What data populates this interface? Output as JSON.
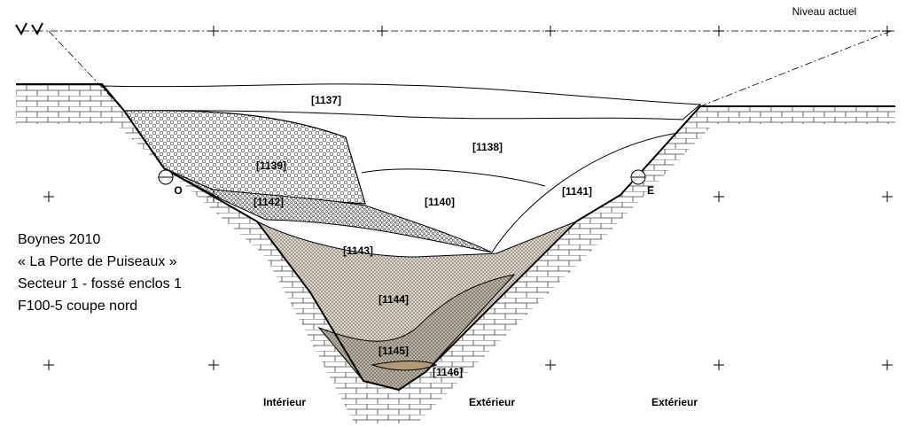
{
  "header": {
    "label": "Niveau actuel"
  },
  "layers": [
    {
      "label": "[1137]"
    },
    {
      "label": "[1138]"
    },
    {
      "label": "[1139]"
    },
    {
      "label": "[1140]"
    },
    {
      "label": "[1141]"
    },
    {
      "label": "[1142]"
    },
    {
      "label": "[1143]"
    },
    {
      "label": "[1144]"
    },
    {
      "label": "[1145]"
    },
    {
      "label": "[1146]"
    }
  ],
  "markers": [
    "O",
    "E"
  ],
  "caption": [
    "Boynes 2010",
    "« La Porte de Puiseaux »",
    "Secteur 1 - fossé enclos 1",
    "F100-5 coupe nord"
  ],
  "orientation": [
    "Intérieur",
    "Extérieur",
    "Extérieur"
  ]
}
